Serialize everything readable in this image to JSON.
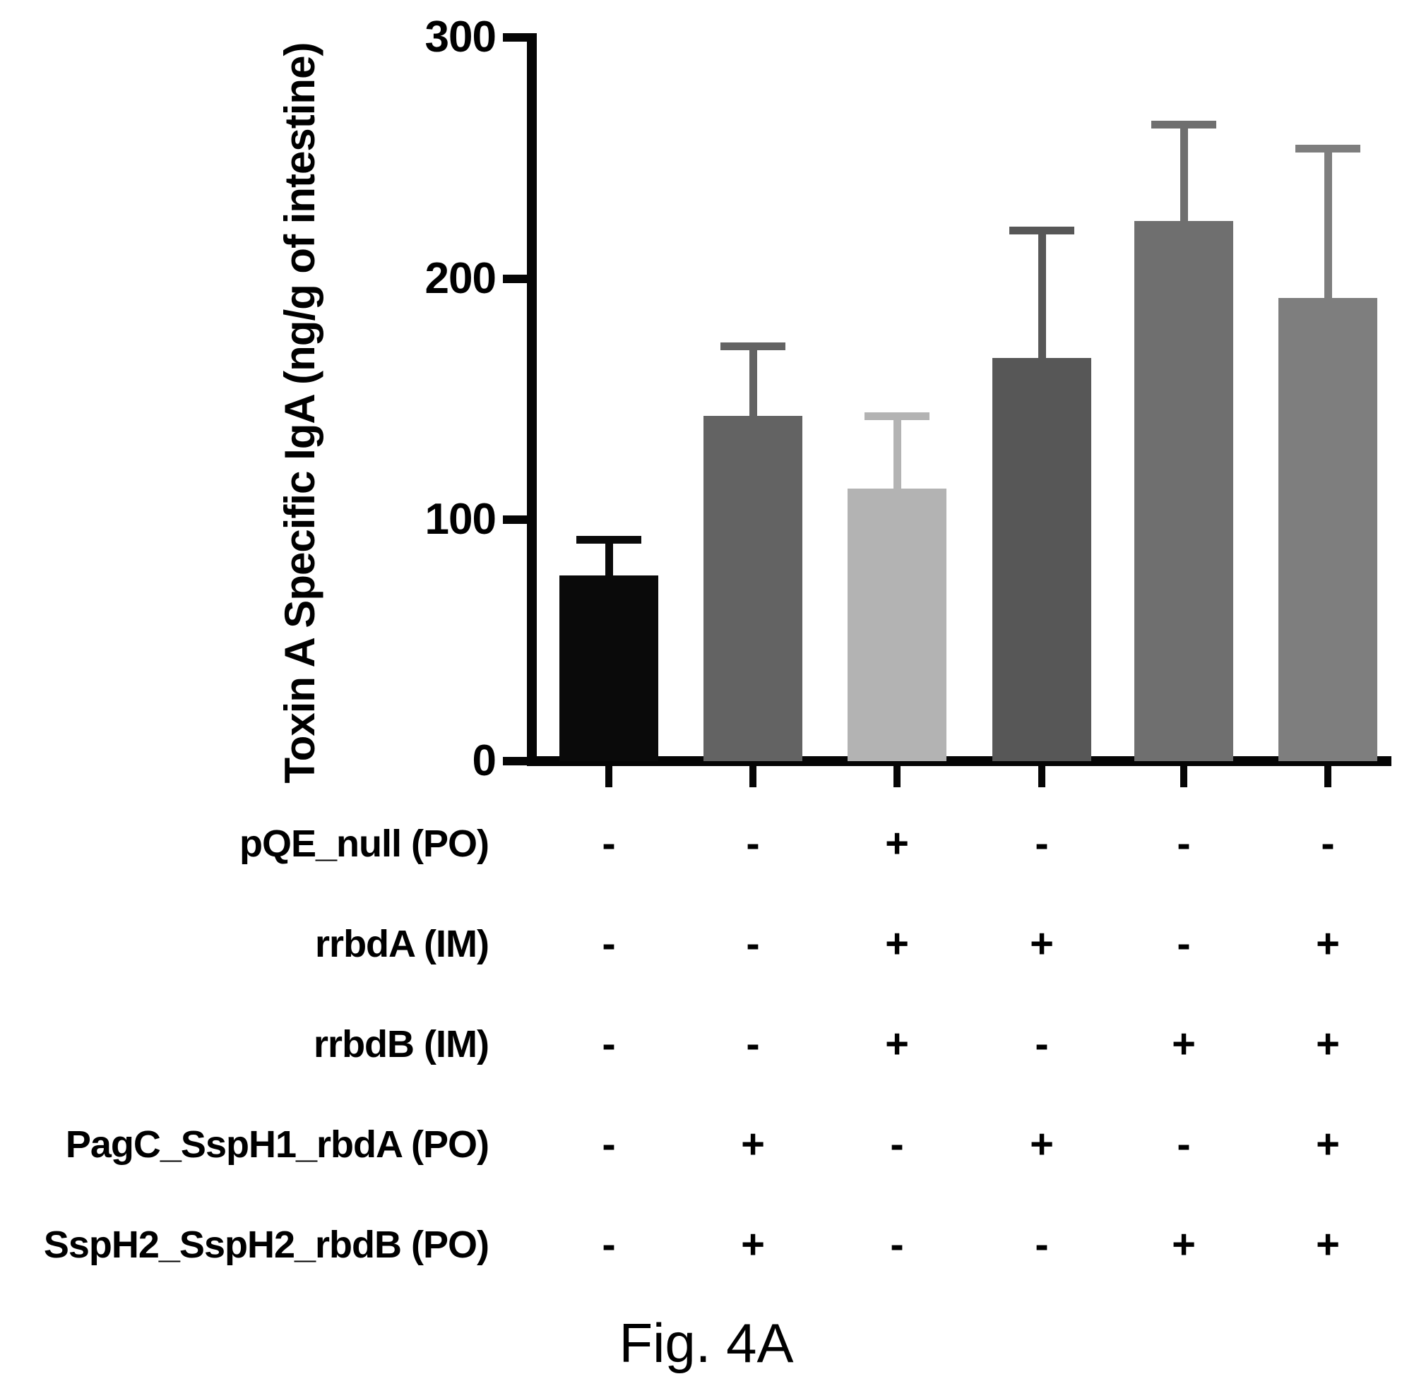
{
  "chart_data": {
    "type": "bar",
    "title": "",
    "ylabel": "Toxin A Specific IgA (ng/g of intestine)",
    "xlabel": "",
    "ylim": [
      0,
      300
    ],
    "yticks": [
      "0",
      "100",
      "200",
      "300"
    ],
    "grid": false,
    "legend_position": "none",
    "bars": [
      {
        "value": 77,
        "error_plus": 15,
        "color": "#0a0a0a"
      },
      {
        "value": 143,
        "error_plus": 29,
        "color": "#636363"
      },
      {
        "value": 113,
        "error_plus": 30,
        "color": "#b3b3b3"
      },
      {
        "value": 167,
        "error_plus": 53,
        "color": "#575757"
      },
      {
        "value": 224,
        "error_plus": 40,
        "color": "#6f6f6f"
      },
      {
        "value": 192,
        "error_plus": 62,
        "color": "#7e7e7e"
      }
    ],
    "group_table": {
      "rows": [
        {
          "label": "pQE_null (PO)",
          "signs": [
            "-",
            "-",
            "+",
            "-",
            "-",
            "-"
          ]
        },
        {
          "label": "rrbdA (IM)",
          "signs": [
            "-",
            "-",
            "+",
            "+",
            "-",
            "+"
          ]
        },
        {
          "label": "rrbdB (IM)",
          "signs": [
            "-",
            "-",
            "+",
            "-",
            "+",
            "+"
          ]
        },
        {
          "label": "PagC_SspH1_rbdA (PO)",
          "signs": [
            "-",
            "+",
            "-",
            "+",
            "-",
            "+"
          ]
        },
        {
          "label": "SspH2_SspH2_rbdB (PO)",
          "signs": [
            "-",
            "+",
            "-",
            "-",
            "+",
            "+"
          ]
        }
      ]
    },
    "caption": "Fig. 4A"
  }
}
